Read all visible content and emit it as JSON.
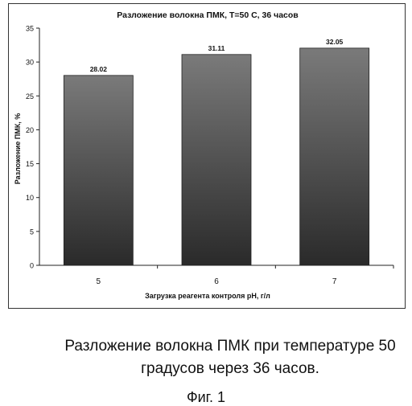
{
  "chart_data": {
    "type": "bar",
    "title": "Разложение волокна ПМК, Т=50 С, 36 часов",
    "xlabel": "Загрузка реагента контроля pH, г/л",
    "ylabel": "Разложение ПМК, %",
    "categories": [
      "5",
      "6",
      "7"
    ],
    "values": [
      28.02,
      31.11,
      32.05
    ],
    "data_labels": [
      "28.02",
      "31.11",
      "32.05"
    ],
    "ylim": [
      0,
      35
    ],
    "yticks": [
      "0",
      "5",
      "10",
      "15",
      "20",
      "25",
      "30",
      "35"
    ],
    "grid": false,
    "bar_color": "#4a4a4a"
  },
  "caption": {
    "line1": "Разложение волокна ПМК при температуре 50",
    "line2": "градусов через 36 часов.",
    "figure": "Фиг. 1"
  }
}
